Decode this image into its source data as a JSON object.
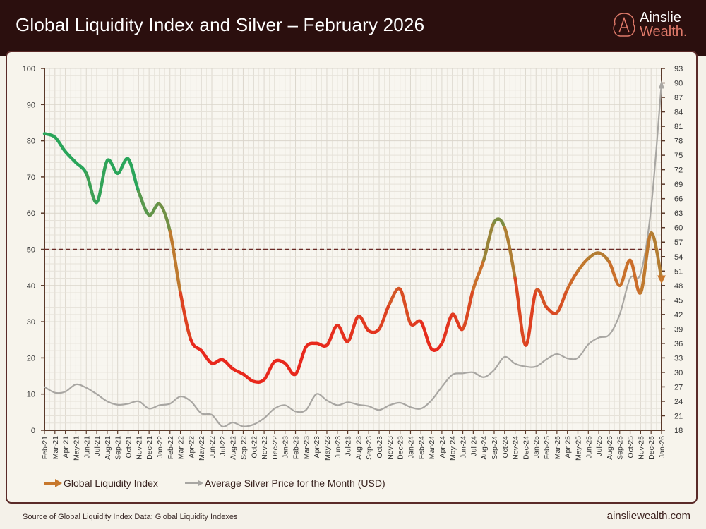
{
  "header": {
    "title": "Global Liquidity Index and Silver – February 2026"
  },
  "logo": {
    "line1": "Ainslie",
    "line2": "Wealth.",
    "accent": "#e07a6a"
  },
  "footer": {
    "source": "Source of Global Liquidity Index Data: Global Liquidity Indexes",
    "url": "ainsliewealth.com"
  },
  "chart_data": {
    "type": "line",
    "title": "Global Liquidity Index and Silver – February 2026",
    "grid": true,
    "legend_placement": "bottom-left",
    "categories": [
      "Feb-21",
      "Mar-21",
      "Apr-21",
      "May-21",
      "Jun-21",
      "Jul-21",
      "Aug-21",
      "Sep-21",
      "Oct-21",
      "Nov-21",
      "Dec-21",
      "Jan-22",
      "Feb-22",
      "Mar-22",
      "Apr-22",
      "May-22",
      "Jun-22",
      "Jul-22",
      "Aug-22",
      "Sep-22",
      "Oct-22",
      "Nov-22",
      "Dec-22",
      "Jan-23",
      "Feb-23",
      "Mar-23",
      "Apr-23",
      "May-23",
      "Jun-23",
      "Jul-23",
      "Aug-23",
      "Sep-23",
      "Oct-23",
      "Nov-23",
      "Dec-23",
      "Jan-24",
      "Feb-24",
      "Mar-24",
      "Apr-24",
      "May-24",
      "Jun-24",
      "Jul-24",
      "Aug-24",
      "Sep-24",
      "Oct-24",
      "Nov-24",
      "Dec-24",
      "Jan-25",
      "Feb-25",
      "Mar-25",
      "Apr-25",
      "May-25",
      "Jun-25",
      "Jul-25",
      "Aug-25",
      "Sep-25",
      "Oct-25",
      "Nov-25",
      "Dec-25",
      "Jan-26"
    ],
    "left_axis": {
      "ylim": [
        0,
        100
      ],
      "ticks": [
        0,
        10,
        20,
        30,
        40,
        50,
        60,
        70,
        80,
        90,
        100
      ]
    },
    "right_axis": {
      "ylim": [
        18,
        93
      ],
      "ticks": [
        18,
        21,
        24,
        27,
        30,
        33,
        36,
        39,
        42,
        45,
        48,
        51,
        54,
        57,
        60,
        63,
        66,
        69,
        72,
        75,
        78,
        81,
        84,
        87,
        90,
        93
      ]
    },
    "reference_line": {
      "value": 50,
      "axis": "left",
      "style": "dashed",
      "color": "#6b2a26"
    },
    "series": [
      {
        "name": "Global Liquidity Index",
        "axis": "left",
        "colors": {
          "high": "#2aa55a",
          "mid": "#c7772c",
          "low": "#e8281c"
        },
        "values": [
          82,
          81,
          77,
          74,
          71,
          63,
          74.5,
          71,
          75,
          66,
          59.5,
          62.5,
          55,
          38,
          25,
          22,
          18.5,
          19.5,
          17,
          15.5,
          13.5,
          14,
          19,
          18.5,
          15.5,
          23,
          24,
          23.5,
          29,
          24.5,
          31.5,
          27.5,
          28,
          35,
          39,
          29.5,
          30,
          22.5,
          24,
          32,
          28,
          39,
          47,
          57.5,
          56,
          42,
          23.5,
          38.5,
          34,
          32.5,
          39,
          44,
          47.5,
          49,
          46.5,
          40,
          47,
          38,
          54.5,
          42
        ]
      },
      {
        "name": "Average Silver Price for the Month (USD)",
        "axis": "right",
        "color": "#a8a6a2",
        "values": [
          27,
          25.8,
          26,
          27.5,
          26.8,
          25.5,
          24,
          23.3,
          23.5,
          24,
          22.5,
          23.2,
          23.5,
          25,
          24,
          21.5,
          21.2,
          18.8,
          19.6,
          18.8,
          19.2,
          20.5,
          22.5,
          23.2,
          21.9,
          22.2,
          25.5,
          24.2,
          23.2,
          23.8,
          23.3,
          23,
          22.2,
          23.2,
          23.7,
          22.8,
          22.5,
          24.2,
          27,
          29.5,
          29.8,
          30,
          29,
          30.5,
          33.2,
          31.8,
          31.2,
          31.2,
          32.7,
          33.8,
          32.9,
          33,
          35.8,
          37.2,
          37.8,
          42,
          49.5,
          50.5,
          64,
          90
        ]
      }
    ]
  }
}
